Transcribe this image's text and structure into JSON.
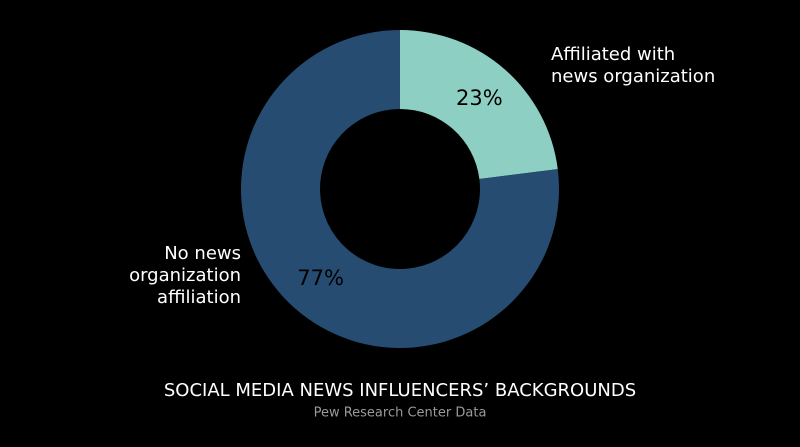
{
  "chart_data": {
    "type": "donut",
    "title": "SOCIAL MEDIA NEWS INFLUENCERS’ BACKGROUNDS",
    "subtitle": "Pew Research Center Data",
    "categories": [
      "Affiliated with news organization",
      "No news organization affiliation"
    ],
    "values": [
      23,
      77
    ],
    "value_labels": [
      "23%",
      "77%"
    ],
    "colors": [
      "#8dcfc3",
      "#264c72"
    ]
  }
}
